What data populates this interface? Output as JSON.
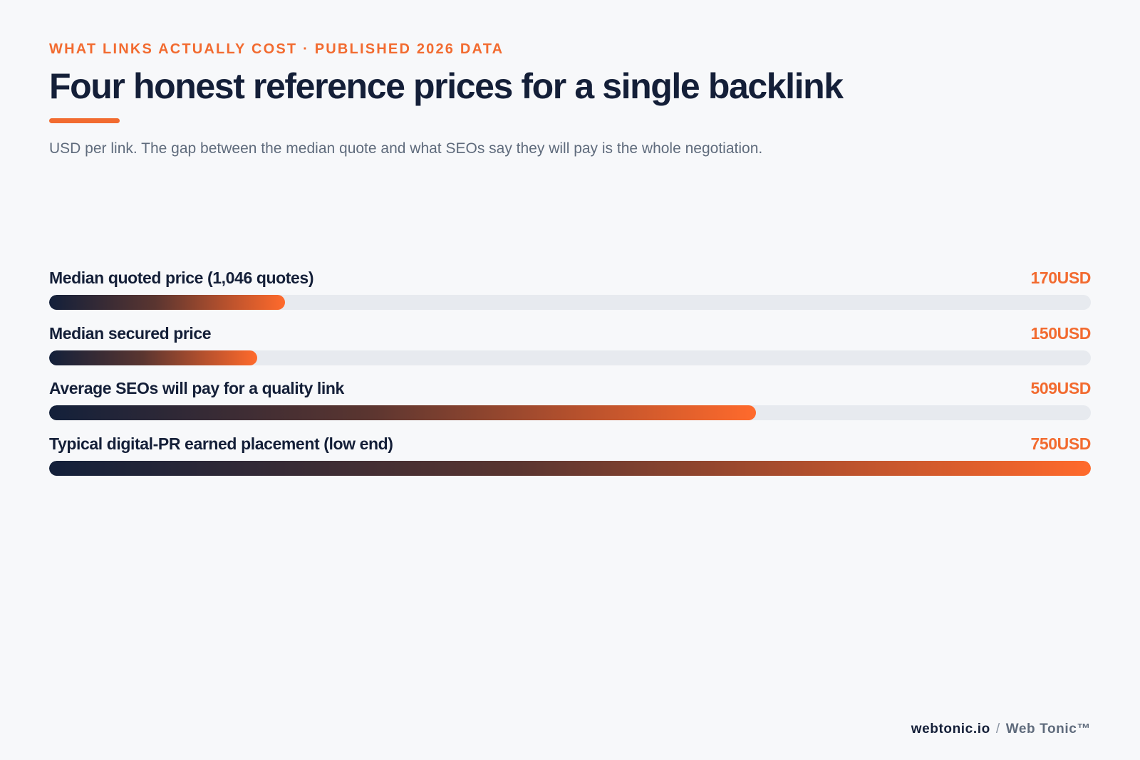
{
  "header": {
    "eyebrow": "WHAT LINKS ACTUALLY COST · PUBLISHED 2026 DATA",
    "title": "Four honest reference prices for a single backlink",
    "subtitle": "USD per link. The gap between the median quote and what SEOs say they will pay is the whole negotiation."
  },
  "colors": {
    "accent": "#f26b30",
    "navy": "#141f38",
    "track": "#e7eaef",
    "background": "#f7f8fa"
  },
  "chart_data": {
    "type": "bar",
    "orientation": "horizontal",
    "unit": "USD",
    "categories": [
      "Median quoted price (1,046 quotes)",
      "Median secured price",
      "Average SEOs will pay for a quality link",
      "Typical digital-PR earned placement (low end)"
    ],
    "values": [
      170,
      150,
      509,
      750
    ],
    "value_labels": [
      "170USD",
      "150USD",
      "509USD",
      "750USD"
    ],
    "xlim": [
      0,
      750
    ],
    "grid": false,
    "legend": "none"
  },
  "footer": {
    "site": "webtonic.io",
    "separator": "/",
    "brand": "Web Tonic™"
  }
}
